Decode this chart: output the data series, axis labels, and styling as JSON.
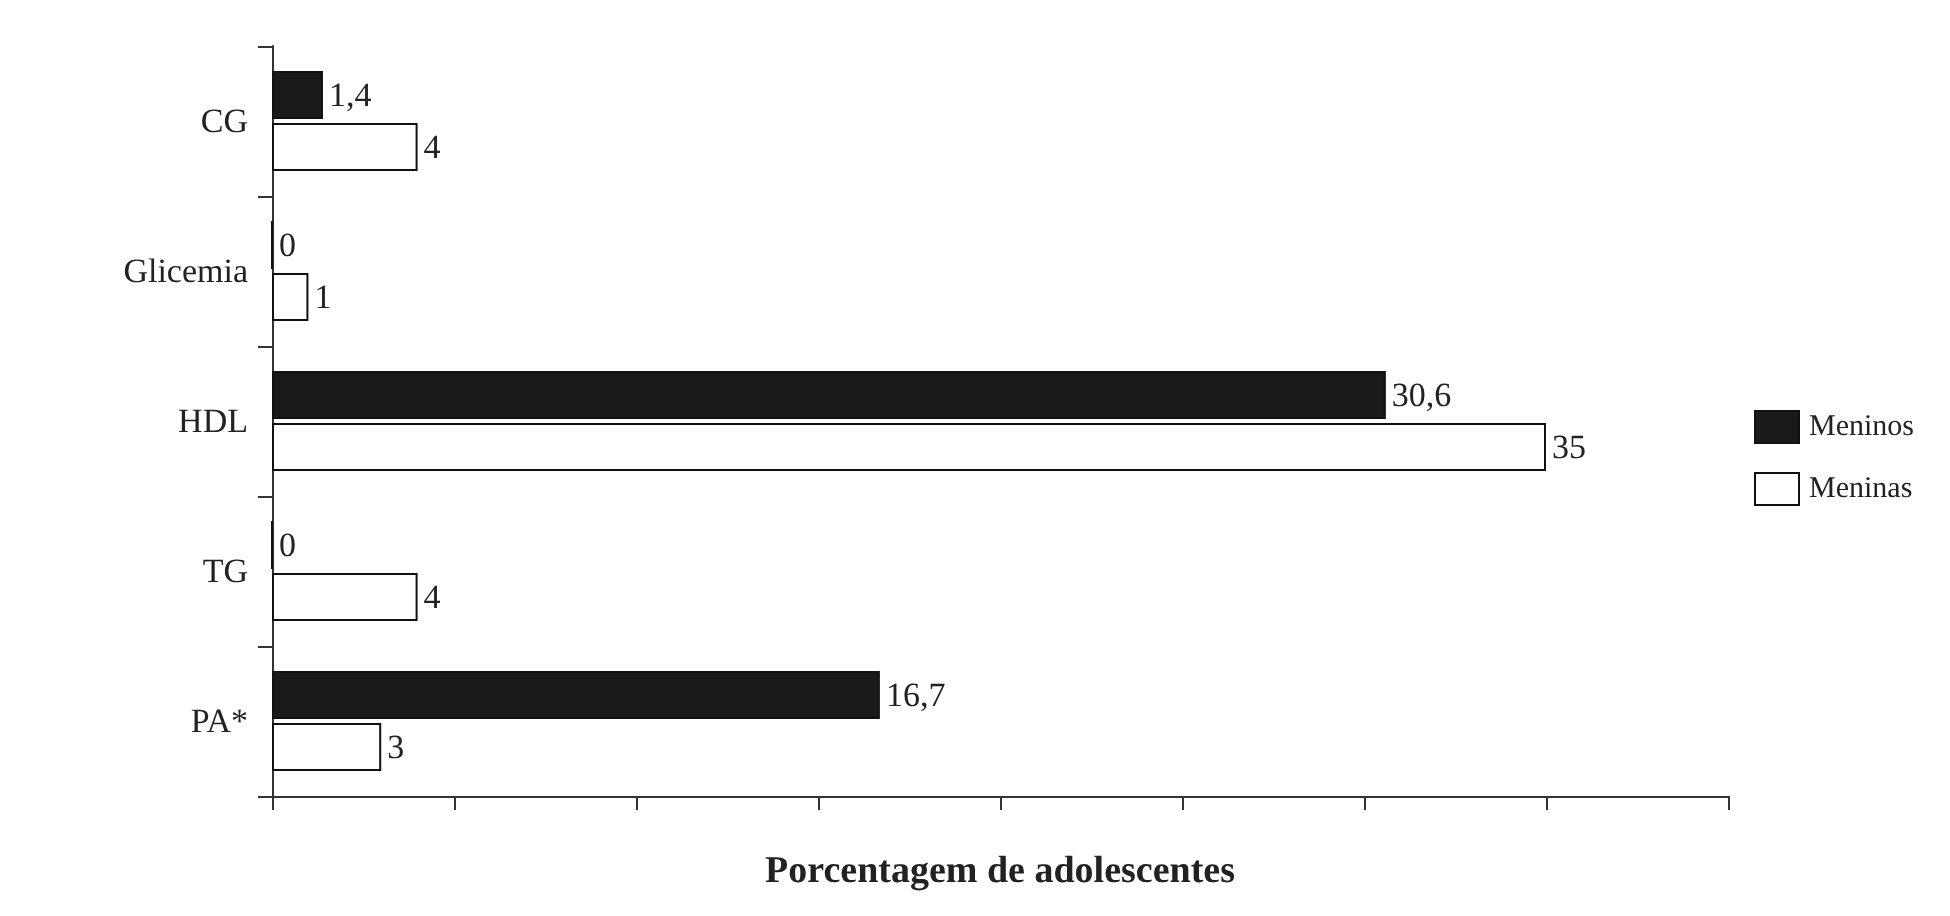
{
  "chart_data": {
    "type": "bar",
    "orientation": "horizontal",
    "xlabel": "Porcentagem de adolescentes",
    "categories": [
      "CG",
      "Glicemia",
      "HDL",
      "TG",
      "PA*"
    ],
    "series": [
      {
        "name": "Meninos",
        "color": "#1a1a1a",
        "values": [
          1.4,
          0,
          30.6,
          0,
          16.7
        ],
        "value_labels": [
          "1,4",
          "0",
          "30,6",
          "0",
          "16,7"
        ]
      },
      {
        "name": "Meninas",
        "color": "#ffffff",
        "values": [
          4,
          1,
          35,
          4,
          3
        ],
        "value_labels": [
          "4",
          "1",
          "35",
          "4",
          "3"
        ]
      }
    ],
    "xlim": [
      0,
      40
    ],
    "xticks": [
      {
        "value": 0,
        "label": null
      },
      {
        "value": 5,
        "label": null
      },
      {
        "value": 10,
        "label": null
      },
      {
        "value": 15,
        "label": null
      },
      {
        "value": 20,
        "label": null
      },
      {
        "value": 25,
        "label": null
      },
      {
        "value": 30,
        "label": null
      },
      {
        "value": 35,
        "label": null
      },
      {
        "value": 40,
        "label": null
      }
    ],
    "tick_labels": "y",
    "grid": false,
    "legend": "right"
  }
}
